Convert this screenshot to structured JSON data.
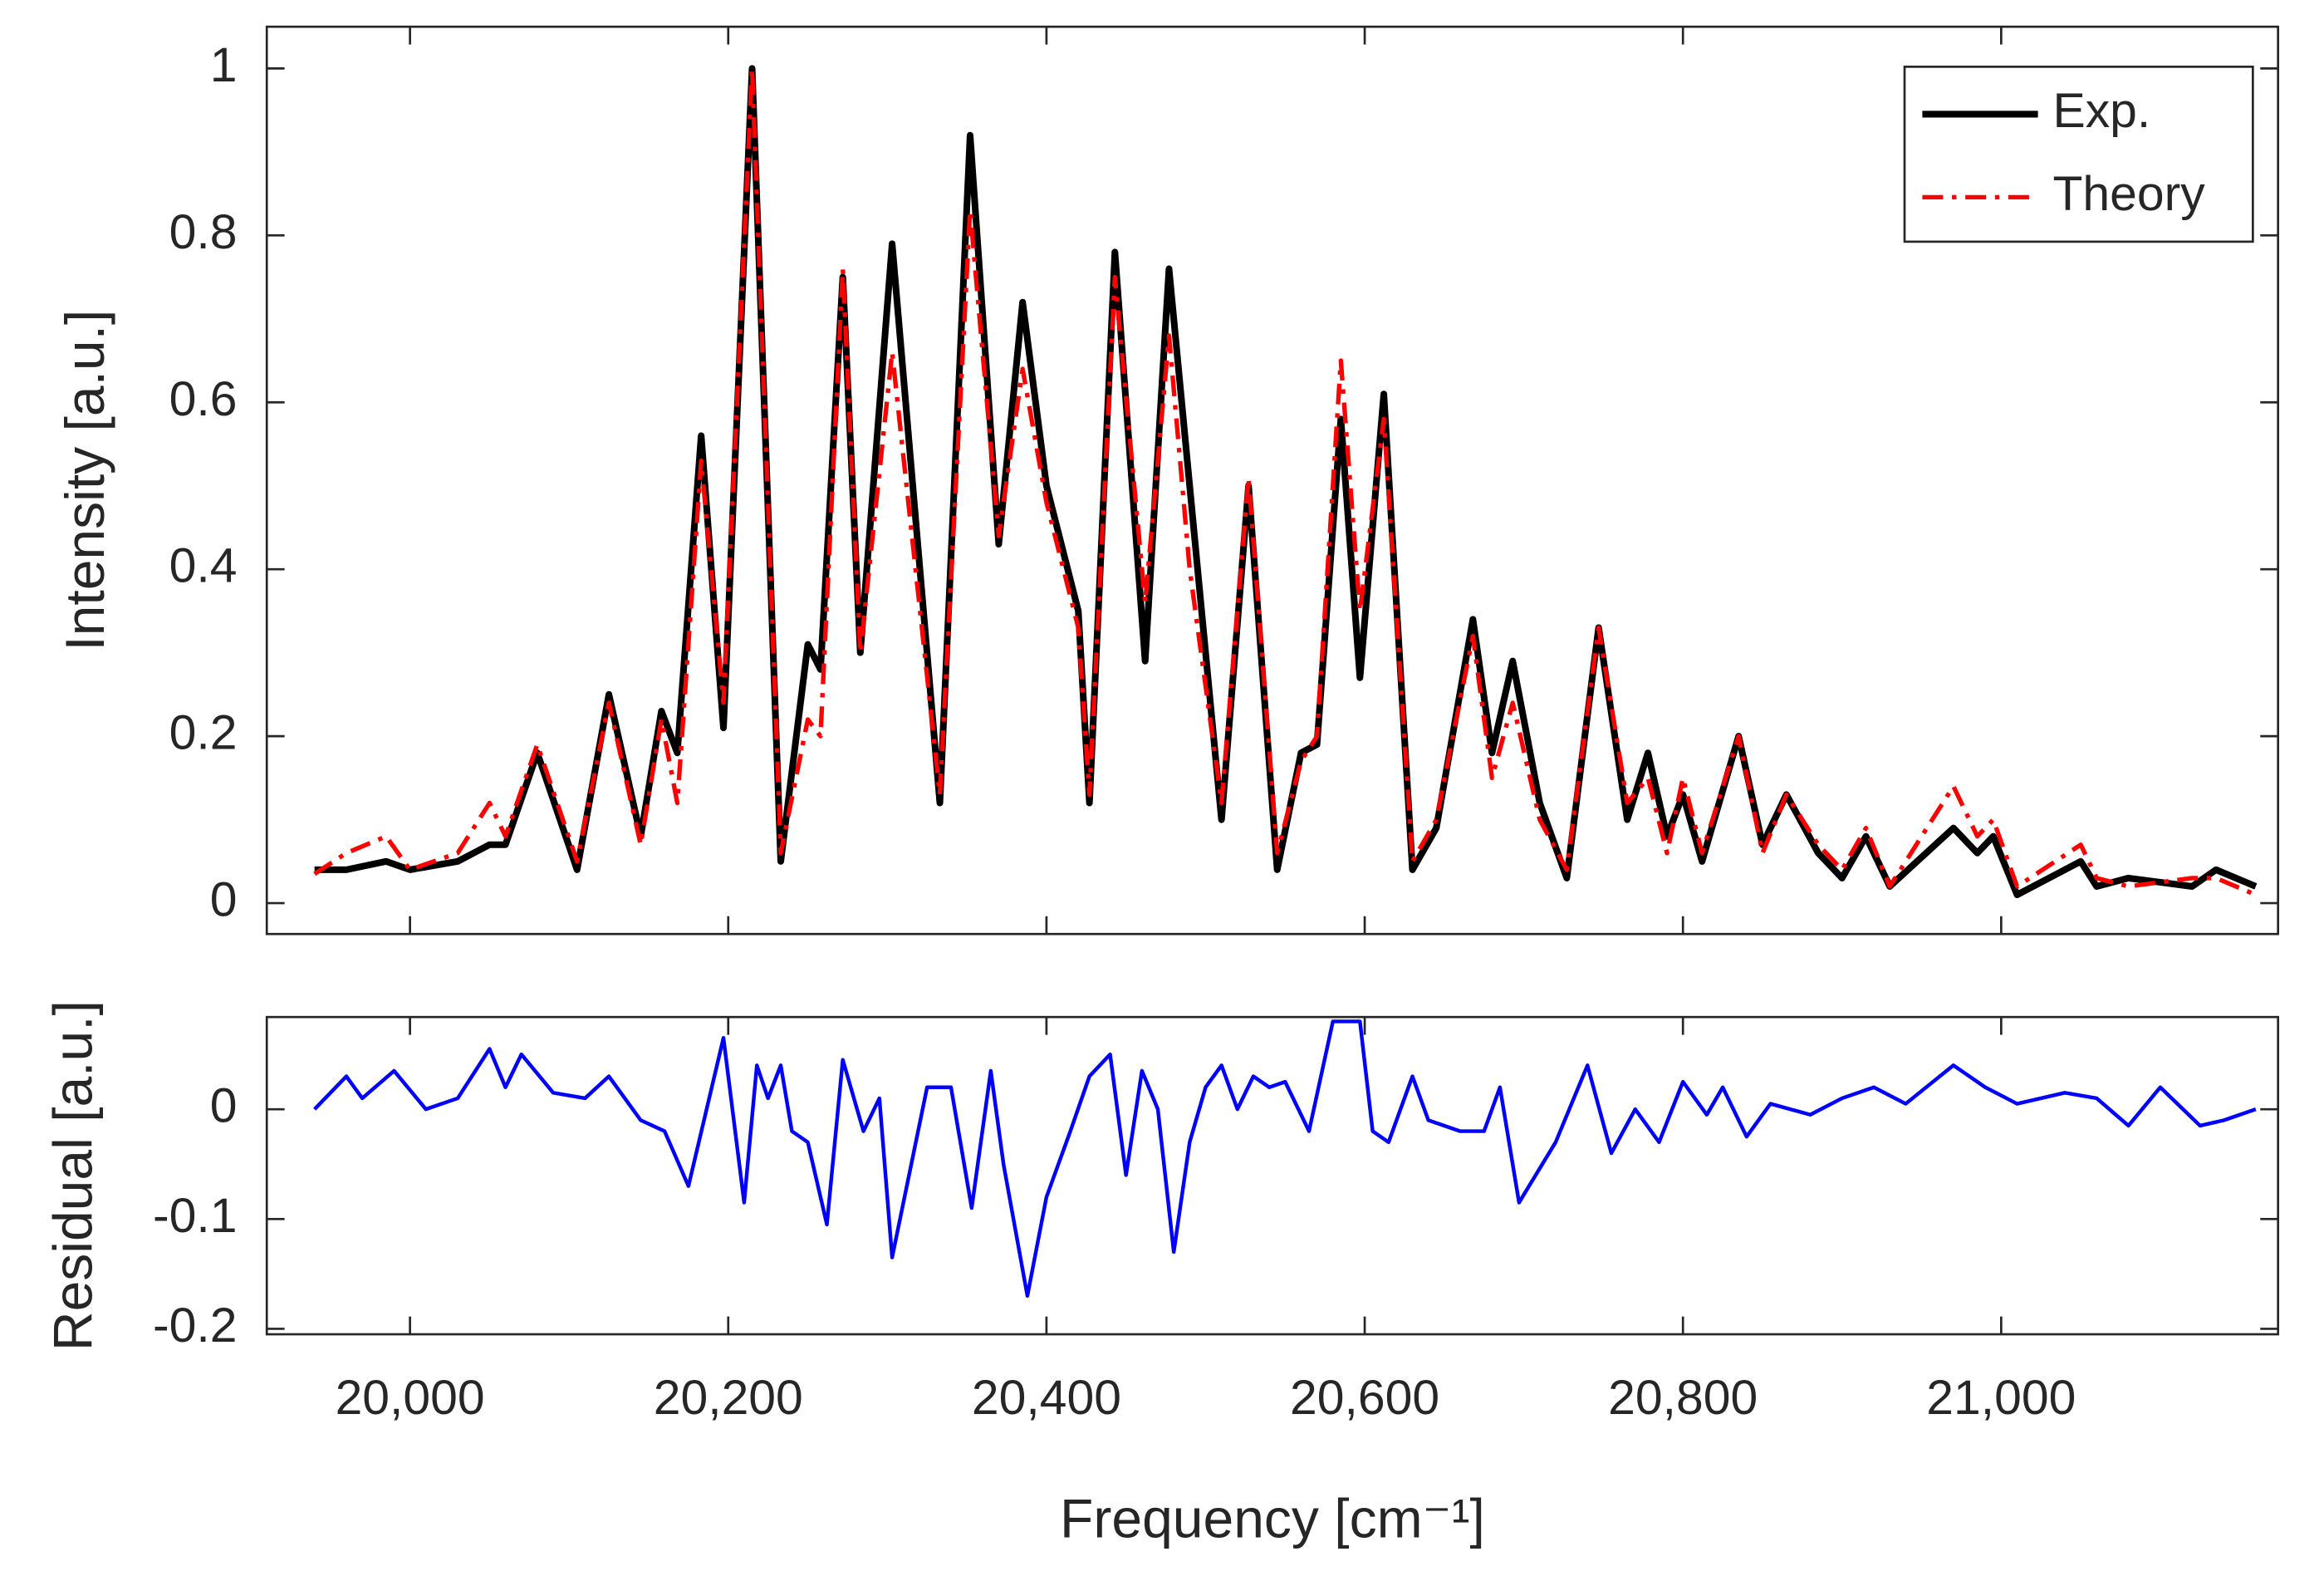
{
  "chart_data": [
    {
      "type": "line",
      "y_label": "Intensity [a.u.]",
      "legend": "upper right",
      "xlim": [
        19910,
        21174
      ],
      "ylim": [
        -0.037,
        1.05
      ],
      "yticks": [
        0,
        0.2,
        0.4,
        0.6,
        0.8,
        1
      ],
      "x": [
        19940,
        19960,
        19985,
        20000,
        20030,
        20050,
        20060,
        20080,
        20105,
        20125,
        20145,
        20158,
        20168,
        20183,
        20197,
        20215,
        20233,
        20250,
        20258,
        20272,
        20283,
        20303,
        20333,
        20352,
        20370,
        20385,
        20400,
        20420,
        20427,
        20443,
        20462,
        20477,
        20490,
        20510,
        20527,
        20545,
        20560,
        20570,
        20585,
        20597,
        20612,
        20630,
        20645,
        20668,
        20680,
        20693,
        20710,
        20727,
        20747,
        20765,
        20778,
        20790,
        20800,
        20812,
        20835,
        20850,
        20865,
        20885,
        20900,
        20915,
        20930,
        20970,
        20985,
        20995,
        21010,
        21050,
        21060,
        21080,
        21120,
        21135,
        21160
      ],
      "series": [
        {
          "name": "Exp.",
          "color": "#000000",
          "style": "solid",
          "values": [
            0.04,
            0.04,
            0.05,
            0.04,
            0.05,
            0.07,
            0.07,
            0.18,
            0.04,
            0.25,
            0.08,
            0.23,
            0.18,
            0.56,
            0.21,
            1.0,
            0.05,
            0.31,
            0.28,
            0.75,
            0.3,
            0.79,
            0.12,
            0.92,
            0.43,
            0.72,
            0.5,
            0.35,
            0.12,
            0.78,
            0.29,
            0.76,
            0.5,
            0.1,
            0.5,
            0.04,
            0.18,
            0.19,
            0.58,
            0.27,
            0.61,
            0.04,
            0.09,
            0.34,
            0.18,
            0.29,
            0.12,
            0.03,
            0.33,
            0.1,
            0.18,
            0.08,
            0.13,
            0.05,
            0.2,
            0.07,
            0.13,
            0.06,
            0.03,
            0.08,
            0.02,
            0.09,
            0.06,
            0.08,
            0.01,
            0.05,
            0.02,
            0.03,
            0.02,
            0.04,
            0.02
          ]
        },
        {
          "name": "Theory",
          "color": "#ff0000",
          "style": "dashdot",
          "values": [
            0.035,
            0.06,
            0.08,
            0.04,
            0.06,
            0.12,
            0.08,
            0.19,
            0.05,
            0.24,
            0.07,
            0.22,
            0.12,
            0.53,
            0.24,
            1.0,
            0.06,
            0.22,
            0.2,
            0.76,
            0.3,
            0.66,
            0.13,
            0.83,
            0.44,
            0.64,
            0.48,
            0.33,
            0.13,
            0.75,
            0.36,
            0.68,
            0.4,
            0.12,
            0.51,
            0.06,
            0.17,
            0.2,
            0.65,
            0.35,
            0.58,
            0.05,
            0.1,
            0.32,
            0.15,
            0.24,
            0.1,
            0.04,
            0.33,
            0.12,
            0.15,
            0.06,
            0.15,
            0.06,
            0.2,
            0.06,
            0.13,
            0.07,
            0.04,
            0.09,
            0.02,
            0.14,
            0.08,
            0.1,
            0.02,
            0.07,
            0.03,
            0.02,
            0.03,
            0.03,
            0.01
          ]
        }
      ]
    },
    {
      "type": "line",
      "y_label": "Residual [a.u.]",
      "x_label": "Frequency [cm⁻¹]",
      "xlim": [
        19910,
        21174
      ],
      "ylim": [
        -0.205,
        0.084
      ],
      "xticks": [
        {
          "value": 20000,
          "label": "20,000"
        },
        {
          "value": 20200,
          "label": "20,200"
        },
        {
          "value": 20400,
          "label": "20,400"
        },
        {
          "value": 20600,
          "label": "20,600"
        },
        {
          "value": 20800,
          "label": "20,800"
        },
        {
          "value": 21000,
          "label": "21,000"
        }
      ],
      "yticks": [
        -0.2,
        -0.1,
        0
      ],
      "x": [
        19940,
        19960,
        19970,
        19990,
        20010,
        20030,
        20050,
        20060,
        20070,
        20090,
        20110,
        20125,
        20145,
        20160,
        20175,
        20197,
        20210,
        20218,
        20225,
        20233,
        20240,
        20250,
        20262,
        20272,
        20285,
        20295,
        20303,
        20325,
        20340,
        20353,
        20365,
        20373,
        20388,
        20400,
        20415,
        20427,
        20440,
        20450,
        20460,
        20470,
        20480,
        20490,
        20500,
        20510,
        20520,
        20530,
        20540,
        20550,
        20565,
        20580,
        20597,
        20605,
        20615,
        20630,
        20640,
        20660,
        20675,
        20685,
        20697,
        20720,
        20740,
        20755,
        20770,
        20785,
        20800,
        20815,
        20825,
        20840,
        20855,
        20880,
        20900,
        20920,
        20940,
        20970,
        20990,
        21010,
        21040,
        21060,
        21080,
        21100,
        21125,
        21140,
        21160
      ],
      "color": "#0000ff",
      "values": [
        0,
        0.03,
        0.01,
        0.035,
        0,
        0.01,
        0.055,
        0.02,
        0.05,
        0.015,
        0.01,
        0.03,
        -0.01,
        -0.02,
        -0.07,
        0.065,
        -0.085,
        0.04,
        0.01,
        0.04,
        -0.02,
        -0.03,
        -0.105,
        0.045,
        -0.02,
        0.01,
        -0.135,
        0.02,
        0.02,
        -0.09,
        0.035,
        -0.05,
        -0.17,
        -0.08,
        -0.02,
        0.03,
        0.05,
        -0.06,
        0.035,
        0,
        -0.13,
        -0.03,
        0.02,
        0.04,
        0,
        0.03,
        0.02,
        0.025,
        -0.02,
        0.08,
        0.08,
        -0.02,
        -0.03,
        0.03,
        -0.01,
        -0.02,
        -0.02,
        0.02,
        -0.085,
        -0.03,
        0.04,
        -0.04,
        0,
        -0.03,
        0.025,
        -0.005,
        0.02,
        -0.025,
        0.005,
        -0.005,
        0.01,
        0.02,
        0.005,
        0.04,
        0.02,
        0.005,
        0.015,
        0.01,
        -0.015,
        0.02,
        -0.015,
        -0.01,
        0
      ]
    }
  ]
}
